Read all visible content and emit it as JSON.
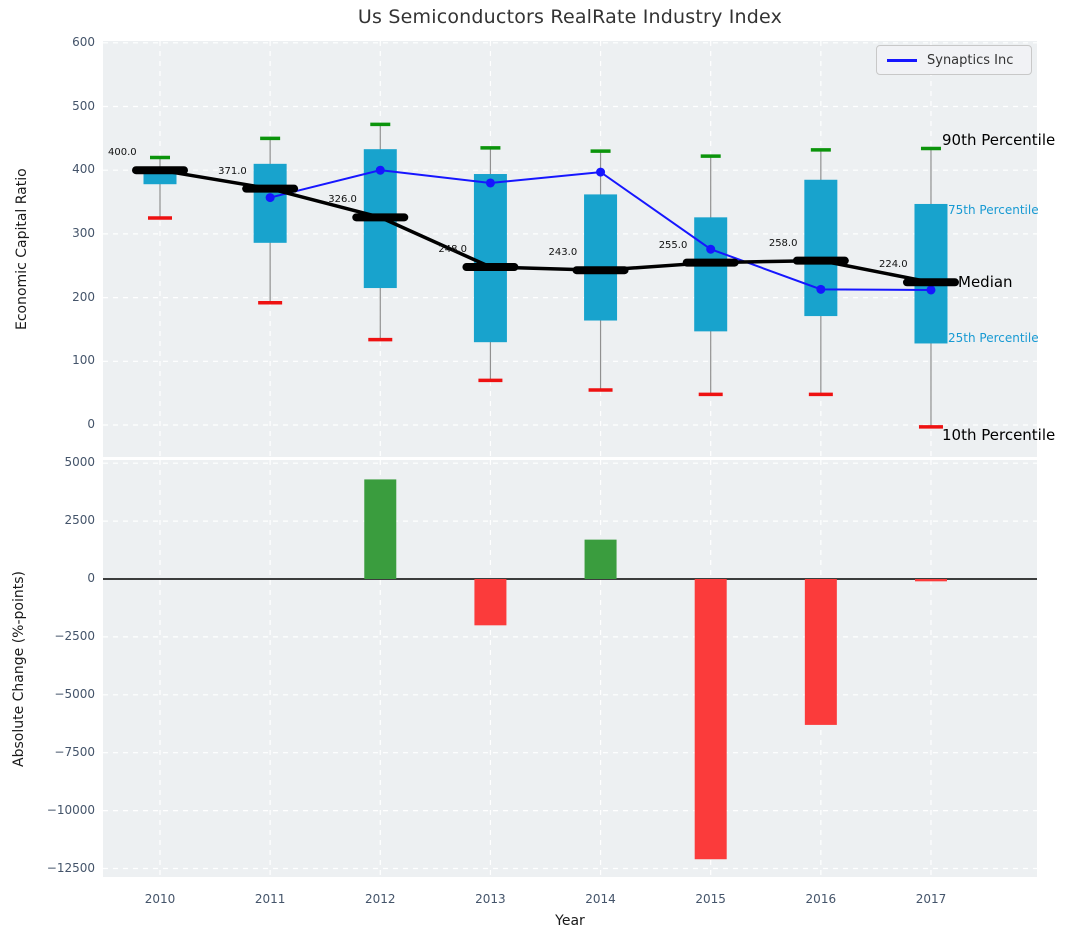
{
  "title": "Us Semiconductors RealRate Industry Index",
  "legend": {
    "label": "Synaptics Inc"
  },
  "colors": {
    "plot_background": "#edf0f2",
    "grid": "#ffffff",
    "box_fill": "#18a3cd",
    "whisker": "#909090",
    "cap_90th_green": "#0b940b",
    "cap_10th_red": "#ee1111",
    "median_black": "#000000",
    "synaptics_blue": "#1616ff",
    "bar_positive_green": "#3a9d3e",
    "bar_negative_red": "#fb3b3b",
    "tick_text": "#44546a",
    "percentile_label_cyan": "#189ad3"
  },
  "axes": {
    "xlabel": "Year",
    "top": {
      "ylabel": "Economic Capital Ratio",
      "yticks": [
        600,
        500,
        400,
        300,
        200,
        100,
        0
      ],
      "ylim": [
        -50,
        603
      ]
    },
    "bottom": {
      "ylabel": "Absolute Change (%-points)",
      "yticks": [
        5000,
        2500,
        0,
        -2500,
        -5000,
        -7500,
        -10000,
        -12500
      ],
      "ylim": [
        -12780,
        5225
      ]
    }
  },
  "chart_data": [
    {
      "type": "box-percentiles+line",
      "title": "Us Semiconductors RealRate Industry Index",
      "ylabel": "Economic Capital Ratio",
      "categories": [
        2010,
        2011,
        2012,
        2013,
        2014,
        2015,
        2016,
        2017
      ],
      "series": [
        {
          "name": "Median",
          "values": [
            400,
            371,
            326,
            248,
            243,
            255,
            258,
            224
          ]
        },
        {
          "name": "75th Percentile (box top)",
          "values": [
            403,
            410,
            433,
            394,
            362,
            326,
            385,
            347
          ]
        },
        {
          "name": "25th Percentile (box bottom)",
          "values": [
            378,
            286,
            215,
            130,
            164,
            147,
            171,
            128
          ]
        },
        {
          "name": "90th Percentile (whisker cap)",
          "values": [
            420,
            450,
            472,
            435,
            430,
            422,
            432,
            434
          ]
        },
        {
          "name": "10th Percentile (whisker cap)",
          "values": [
            325,
            192,
            134,
            70,
            55,
            48,
            48,
            -3
          ]
        },
        {
          "name": "Synaptics Inc",
          "values": [
            null,
            357,
            400,
            380,
            397,
            276,
            213,
            212
          ]
        }
      ],
      "median_annotations": [
        "400.0",
        "371.0",
        "326.0",
        "248.0",
        "243.0",
        "255.0",
        "258.0",
        "224.0"
      ],
      "right_labels": [
        {
          "text": "90th Percentile",
          "value": 447,
          "style": "large"
        },
        {
          "text": "75th Percentile",
          "value": 337,
          "style": "small"
        },
        {
          "text": "Median",
          "value": 224,
          "style": "large"
        },
        {
          "text": "25th Percentile",
          "value": 137,
          "style": "small"
        },
        {
          "text": "10th Percentile",
          "value": -16,
          "style": "large"
        }
      ],
      "legend_position": "upper right",
      "grid": true
    },
    {
      "type": "bar",
      "ylabel": "Absolute Change (%-points)",
      "xlabel": "Year",
      "categories": [
        2010,
        2011,
        2012,
        2013,
        2014,
        2015,
        2016,
        2017
      ],
      "values": [
        null,
        null,
        4300,
        -2000,
        1700,
        -12100,
        -6300,
        -100
      ],
      "grid": true
    }
  ]
}
